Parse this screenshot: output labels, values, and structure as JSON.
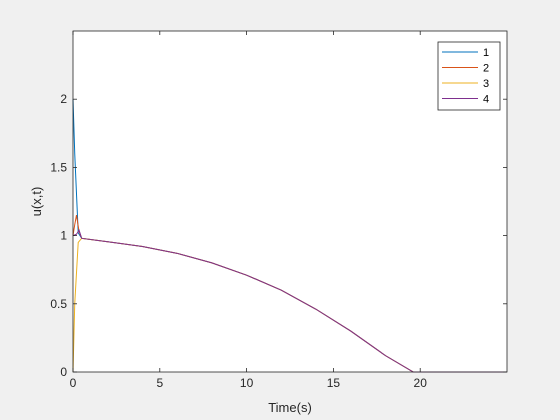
{
  "chart_data": {
    "type": "line",
    "title": "",
    "xlabel": "Time(s)",
    "ylabel": "u(x,t)",
    "xlim": [
      0,
      25
    ],
    "ylim": [
      0,
      2.5
    ],
    "x_ticks": [
      0,
      5,
      10,
      15,
      20
    ],
    "y_ticks": [
      0,
      0.5,
      1,
      1.5,
      2
    ],
    "x_tick_labels": [
      "0",
      "5",
      "10",
      "15",
      "20"
    ],
    "y_tick_labels": [
      "0",
      "0.5",
      "1",
      "1.5",
      "2"
    ],
    "grid": false,
    "legend_position": "top-right",
    "series": [
      {
        "name": "1",
        "color": "#0072BD",
        "x": [
          0,
          0.1,
          0.3,
          0.5,
          2,
          4,
          6,
          8,
          10,
          12,
          14,
          16,
          18,
          19.6,
          20,
          22,
          25
        ],
        "y": [
          2.0,
          1.6,
          1.02,
          0.98,
          0.955,
          0.92,
          0.87,
          0.8,
          0.71,
          0.6,
          0.46,
          0.3,
          0.12,
          0.0,
          0.0,
          0.0,
          0.0
        ]
      },
      {
        "name": "2",
        "color": "#D95319",
        "x": [
          0,
          0.1,
          0.2,
          0.35,
          0.5,
          2,
          4,
          6,
          8,
          10,
          12,
          14,
          16,
          18,
          19.6,
          20,
          22,
          25
        ],
        "y": [
          1.0,
          1.08,
          1.15,
          1.03,
          0.98,
          0.955,
          0.92,
          0.87,
          0.8,
          0.71,
          0.6,
          0.46,
          0.3,
          0.12,
          0.0,
          0.0,
          0.0,
          0.0
        ]
      },
      {
        "name": "3",
        "color": "#EDB120",
        "x": [
          0,
          0.1,
          0.3,
          0.5,
          2,
          4,
          6,
          8,
          10,
          12,
          14,
          16,
          18,
          19.6,
          20,
          22,
          25
        ],
        "y": [
          0.0,
          0.5,
          0.95,
          0.98,
          0.955,
          0.92,
          0.87,
          0.8,
          0.71,
          0.6,
          0.46,
          0.3,
          0.12,
          0.0,
          0.0,
          0.0,
          0.0
        ]
      },
      {
        "name": "4",
        "color": "#7E2F8E",
        "x": [
          0,
          0.2,
          0.35,
          0.5,
          2,
          4,
          6,
          8,
          10,
          12,
          14,
          16,
          18,
          19.6,
          20,
          22,
          25
        ],
        "y": [
          1.0,
          1.01,
          1.04,
          0.98,
          0.955,
          0.92,
          0.87,
          0.8,
          0.71,
          0.6,
          0.46,
          0.3,
          0.12,
          0.0,
          0.0,
          0.0,
          0.0
        ]
      }
    ]
  }
}
